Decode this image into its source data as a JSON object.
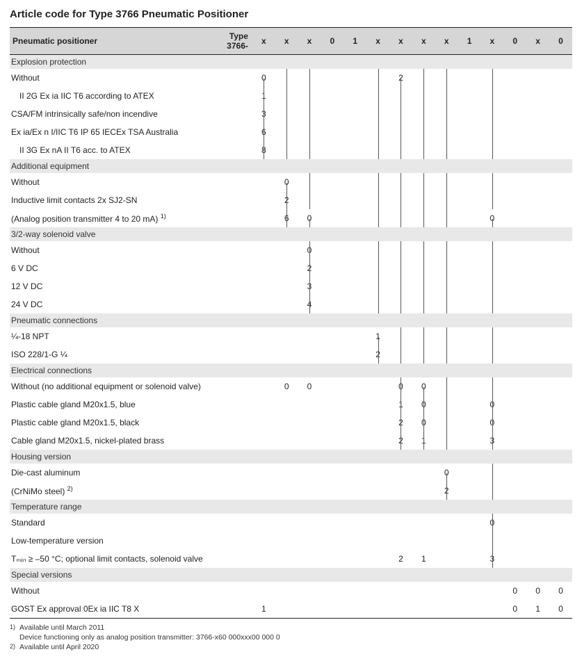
{
  "title": "Article code for Type 3766 Pneumatic Positioner",
  "header": {
    "label": "Pneumatic positioner",
    "type": "Type 3766-",
    "cols": [
      "x",
      "x",
      "x",
      "0",
      "1",
      "x",
      "x",
      "x",
      "x",
      "1",
      "x",
      "0",
      "x",
      "0"
    ]
  },
  "sections": [
    {
      "name": "Explosion protection",
      "rules": [
        0,
        1,
        2,
        5,
        6,
        7,
        8,
        10
      ],
      "rows": [
        {
          "label": "Without",
          "cells": {
            "0": "0",
            "6": "2"
          },
          "starts": [
            0,
            6
          ]
        },
        {
          "label": "II 2G Ex ia IIC T6 according to ATEX",
          "indent": true,
          "cells": {
            "0": "1"
          }
        },
        {
          "label": "CSA/FM intrinsically safe/non incendive",
          "cells": {
            "0": "3"
          }
        },
        {
          "label": "Ex ia/Ex n I/IIC T6 IP 65 IECEx TSA Australia",
          "cells": {
            "0": "6"
          }
        },
        {
          "label": "II 3G Ex nA II T6 acc. to ATEX",
          "indent": true,
          "cells": {
            "0": "8"
          }
        }
      ]
    },
    {
      "name": "Additional equipment",
      "rules": [
        1,
        2,
        5,
        6,
        7,
        8,
        10
      ],
      "rows": [
        {
          "label": "Without",
          "cells": {
            "1": "0"
          },
          "starts": [
            1
          ]
        },
        {
          "label": "Inductive limit contacts 2x SJ2-SN",
          "cells": {
            "1": "2"
          }
        },
        {
          "label": "(Analog position transmitter 4 to 20 mA) ",
          "sup": "1)",
          "cells": {
            "1": "6",
            "2": "0",
            "10": "0"
          },
          "starts": [
            2,
            10
          ]
        }
      ]
    },
    {
      "name": "3/2-way solenoid valve",
      "rules": [
        2,
        5,
        6,
        7,
        8,
        10
      ],
      "rows": [
        {
          "label": "Without",
          "cells": {
            "2": "0"
          }
        },
        {
          "label": "6 V DC",
          "cells": {
            "2": "2"
          }
        },
        {
          "label": "12 V DC",
          "cells": {
            "2": "3"
          }
        },
        {
          "label": "24 V DC",
          "cells": {
            "2": "4"
          }
        }
      ]
    },
    {
      "name": "Pneumatic connections",
      "rules": [
        5,
        6,
        7,
        8,
        10
      ],
      "rows": [
        {
          "label": "¼-18 NPT",
          "cells": {
            "5": "1"
          },
          "starts": [
            5
          ]
        },
        {
          "label": "ISO 228/1-G ¼",
          "cells": {
            "5": "2"
          }
        }
      ]
    },
    {
      "name": "Electrical connections",
      "rules": [
        6,
        7,
        8,
        10
      ],
      "rows": [
        {
          "label": "Without (no additional equipment or solenoid valve)",
          "cells": {
            "1": "0",
            "2": "0",
            "6": "0",
            "7": "0"
          },
          "starts": [
            7
          ]
        },
        {
          "label": "Plastic cable gland M20x1.5, blue",
          "cells": {
            "6": "1",
            "7": "0",
            "10": "0"
          }
        },
        {
          "label": "Plastic cable gland M20x1.5, black",
          "cells": {
            "6": "2",
            "7": "0",
            "10": "0"
          }
        },
        {
          "label": "Cable gland M20x1.5, nickel-plated brass",
          "cells": {
            "6": "2",
            "7": "1",
            "10": "3"
          }
        }
      ]
    },
    {
      "name": "Housing version",
      "rules": [
        8,
        10
      ],
      "rows": [
        {
          "label": "Die-cast aluminum",
          "cells": {
            "8": "0"
          },
          "starts": [
            8
          ]
        },
        {
          "label": "(CrNiMo steel) ",
          "sup": "2)",
          "cells": {
            "8": "2"
          }
        }
      ]
    },
    {
      "name": "Temperature range",
      "rules": [
        10
      ],
      "rows": [
        {
          "label": "Standard",
          "cells": {
            "10": "0"
          }
        },
        {
          "label": "Low-temperature version",
          "cells": {}
        },
        {
          "label": "Tₘᵢₙ ≥ –50 °C; optional limit contacts, solenoid valve",
          "cells": {
            "6": "2",
            "7": "1",
            "10": "3"
          }
        }
      ]
    },
    {
      "name": "Special versions",
      "rules": [],
      "rows": [
        {
          "label": "Without",
          "cells": {
            "11": "0",
            "12": "0",
            "13": "0"
          }
        },
        {
          "label": "GOST Ex approval 0Ex ia IIC T8 X",
          "cells": {
            "0": "1",
            "11": "0",
            "12": "1",
            "13": "0"
          },
          "last": true
        }
      ]
    }
  ],
  "footnotes": [
    {
      "num": "1)",
      "lines": [
        "Available until March 2011",
        "Device functioning only as analog position transmitter: 3766-x60 000xxx00 000 0"
      ]
    },
    {
      "num": "2)",
      "lines": [
        "Available until April 2020"
      ]
    }
  ],
  "ncols": 14
}
